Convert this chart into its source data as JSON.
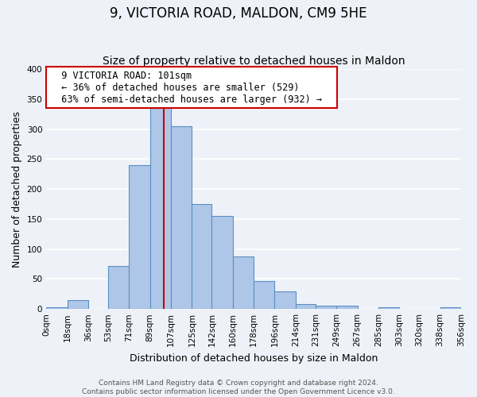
{
  "title": "9, VICTORIA ROAD, MALDON, CM9 5HE",
  "subtitle": "Size of property relative to detached houses in Maldon",
  "xlabel": "Distribution of detached houses by size in Maldon",
  "ylabel": "Number of detached properties",
  "bar_edges": [
    0,
    18,
    36,
    53,
    71,
    89,
    107,
    125,
    142,
    160,
    178,
    196,
    214,
    231,
    249,
    267,
    285,
    303,
    320,
    338,
    356
  ],
  "bar_heights": [
    3,
    15,
    0,
    72,
    240,
    335,
    305,
    175,
    155,
    87,
    46,
    29,
    8,
    5,
    5,
    0,
    3,
    0,
    0,
    3
  ],
  "bar_color": "#aec6e8",
  "bar_edgecolor": "#5a8fc2",
  "vline_x": 101,
  "vline_color": "#cc0000",
  "annotation_title": "9 VICTORIA ROAD: 101sqm",
  "annotation_line1": "← 36% of detached houses are smaller (529)",
  "annotation_line2": "63% of semi-detached houses are larger (932) →",
  "annotation_box_edgecolor": "#cc0000",
  "annotation_box_facecolor": "#ffffff",
  "tick_labels": [
    "0sqm",
    "18sqm",
    "36sqm",
    "53sqm",
    "71sqm",
    "89sqm",
    "107sqm",
    "125sqm",
    "142sqm",
    "160sqm",
    "178sqm",
    "196sqm",
    "214sqm",
    "231sqm",
    "249sqm",
    "267sqm",
    "285sqm",
    "303sqm",
    "320sqm",
    "338sqm",
    "356sqm"
  ],
  "ylim": [
    0,
    400
  ],
  "yticks": [
    0,
    50,
    100,
    150,
    200,
    250,
    300,
    350,
    400
  ],
  "footer_line1": "Contains HM Land Registry data © Crown copyright and database right 2024.",
  "footer_line2": "Contains public sector information licensed under the Open Government Licence v3.0.",
  "background_color": "#eef2f8",
  "grid_color": "#ffffff",
  "title_fontsize": 12,
  "subtitle_fontsize": 10,
  "axis_label_fontsize": 9,
  "tick_fontsize": 7.5,
  "footer_fontsize": 6.5,
  "ann_fontsize": 8.5
}
